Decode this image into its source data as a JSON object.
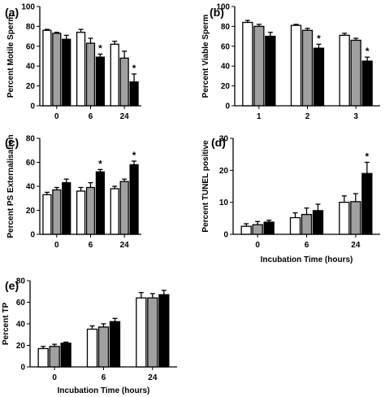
{
  "colors": {
    "series": [
      "#ffffff",
      "#a0a0a0",
      "#000000"
    ],
    "axis": "#000000"
  },
  "chart_data": [
    {
      "type": "bar",
      "panel_label": "(a)",
      "categories": [
        "0",
        "6",
        "24"
      ],
      "ylabel": "Percent Motile Sperm",
      "xlabel": "",
      "ylim": [
        0,
        100
      ],
      "yticks": [
        0,
        20,
        40,
        60,
        80,
        100
      ],
      "series": [
        {
          "values": [
            76,
            74,
            62
          ],
          "errors": [
            1,
            3,
            3
          ]
        },
        {
          "values": [
            73,
            63,
            48
          ],
          "errors": [
            1,
            5,
            7
          ]
        },
        {
          "values": [
            67,
            49,
            24
          ],
          "errors": [
            4,
            3,
            8
          ]
        }
      ],
      "annotations": [
        {
          "category": 1,
          "series": 2,
          "text": "*"
        },
        {
          "category": 2,
          "series": 2,
          "text": "*"
        }
      ]
    },
    {
      "type": "bar",
      "panel_label": "(b)",
      "categories": [
        "1",
        "2",
        "3"
      ],
      "ylabel": "Percent Viable Sperm",
      "xlabel": "",
      "ylim": [
        0,
        100
      ],
      "yticks": [
        0,
        20,
        40,
        60,
        80,
        100
      ],
      "series": [
        {
          "values": [
            84,
            81,
            71
          ],
          "errors": [
            2,
            1,
            2
          ]
        },
        {
          "values": [
            80,
            76,
            66
          ],
          "errors": [
            2,
            2,
            2
          ]
        },
        {
          "values": [
            70,
            58,
            45
          ],
          "errors": [
            4,
            4,
            4
          ]
        }
      ],
      "annotations": [
        {
          "category": 1,
          "series": 2,
          "text": "*"
        },
        {
          "category": 2,
          "series": 2,
          "text": "*"
        }
      ]
    },
    {
      "type": "bar",
      "panel_label": "(c)",
      "categories": [
        "0",
        "6",
        "24"
      ],
      "ylabel": "Percent PS Externalisation",
      "xlabel": "",
      "ylim": [
        0,
        80
      ],
      "yticks": [
        0,
        20,
        40,
        60,
        80
      ],
      "series": [
        {
          "values": [
            33,
            36,
            38
          ],
          "errors": [
            2,
            3,
            2
          ]
        },
        {
          "values": [
            37,
            39,
            44
          ],
          "errors": [
            2,
            4,
            2
          ]
        },
        {
          "values": [
            43,
            52,
            58
          ],
          "errors": [
            3,
            2,
            3
          ]
        }
      ],
      "annotations": [
        {
          "category": 1,
          "series": 2,
          "text": "*"
        },
        {
          "category": 2,
          "series": 2,
          "text": "*"
        }
      ]
    },
    {
      "type": "bar",
      "panel_label": "(d)",
      "categories": [
        "0",
        "6",
        "24"
      ],
      "ylabel": "Percent TUNEL positive",
      "xlabel": "Incubation Time (hours)",
      "ylim": [
        0,
        30
      ],
      "yticks": [
        0,
        10,
        20,
        30
      ],
      "series": [
        {
          "values": [
            2.5,
            5.2,
            10
          ],
          "errors": [
            0.8,
            1.5,
            2
          ]
        },
        {
          "values": [
            3,
            6.2,
            10.2
          ],
          "errors": [
            1,
            2,
            2.5
          ]
        },
        {
          "values": [
            3.8,
            7.4,
            19
          ],
          "errors": [
            0.6,
            2,
            3.5
          ]
        }
      ],
      "annotations": [
        {
          "category": 2,
          "series": 2,
          "text": "*"
        }
      ]
    },
    {
      "type": "bar",
      "panel_label": "(e)",
      "categories": [
        "0",
        "6",
        "24"
      ],
      "ylabel": "Percent TP",
      "xlabel": "Incubation Time (hours)",
      "ylim": [
        0,
        80
      ],
      "yticks": [
        0,
        20,
        40,
        60,
        80
      ],
      "series": [
        {
          "values": [
            17,
            35,
            64
          ],
          "errors": [
            2,
            3,
            5
          ]
        },
        {
          "values": [
            19,
            37,
            64
          ],
          "errors": [
            2,
            3,
            4
          ]
        },
        {
          "values": [
            22,
            42,
            67
          ],
          "errors": [
            1,
            3,
            4
          ]
        }
      ],
      "annotations": []
    }
  ]
}
